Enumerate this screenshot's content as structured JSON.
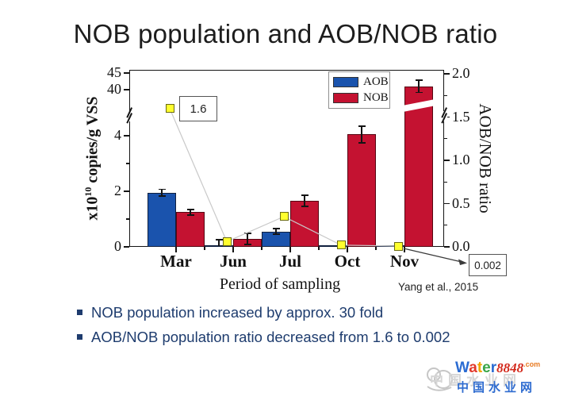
{
  "slide": {
    "title": "NOB population and AOB/NOB ratio",
    "bullets": [
      "NOB population increased by approx. 30 fold",
      "AOB/NOB population ratio decreased from 1.6 to 0.002"
    ],
    "citation": "Yang et al., 2015"
  },
  "chart_data": {
    "type": "bar",
    "categories": [
      "Mar",
      "Jun",
      "Jul",
      "Oct",
      "Nov"
    ],
    "series": [
      {
        "name": "AOB",
        "type": "bar",
        "color": "#1a53ad",
        "values": [
          1.95,
          0.05,
          0.55,
          0.06,
          0.06
        ],
        "errors": [
          0.12,
          0.2,
          0.1,
          0,
          0
        ]
      },
      {
        "name": "NOB",
        "type": "bar",
        "color": "#c41231",
        "values": [
          1.25,
          0.28,
          1.65,
          4.05,
          41
        ],
        "errors": [
          0.1,
          0.2,
          0.2,
          0.3,
          1.8
        ]
      }
    ],
    "ratio_series": {
      "name": "AOB/NOB ratio",
      "type": "line",
      "marker": "square",
      "marker_color": "#ffff2e",
      "line_color": "#c9c9c9",
      "values": [
        1.6,
        0.06,
        0.35,
        0.02,
        0.002
      ]
    },
    "left_axis": {
      "label_full": "x10^10 copies/g VSS",
      "label_prefix": "x10",
      "label_superscript": "10",
      "label_suffix": " copies/g VSS",
      "lower_ticks": [
        0,
        2,
        4
      ],
      "upper_ticks": [
        40,
        45
      ],
      "axis_break": "between 4 and 40",
      "units": "x10^10 copies/g VSS"
    },
    "right_axis": {
      "label": "AOB/NOB ratio",
      "ticks": [
        "0.0",
        "0.5",
        "1.0",
        "1.5",
        "2.0"
      ],
      "range": [
        0,
        2
      ]
    },
    "x_axis": {
      "label": "Period of sampling"
    },
    "legend": {
      "position": "top-right",
      "entries": [
        "AOB",
        "NOB"
      ]
    },
    "annotations": [
      {
        "text": "1.6"
      },
      {
        "text": "0.002"
      }
    ]
  },
  "watermark": {
    "brand_letters": [
      [
        "W",
        "#2a6bd2"
      ],
      [
        "a",
        "#e2382a"
      ],
      [
        "t",
        "#f0a400"
      ],
      [
        "e",
        "#3aa648"
      ],
      [
        "r",
        "#2a6bd2"
      ]
    ],
    "brand_number": "8848",
    "brand_number_color": "#d3291c",
    "brand_tld": ".com",
    "brand_tld_color": "#e87b22",
    "site_name": "中国水业网",
    "site_name_color": "#2f6cd0"
  }
}
